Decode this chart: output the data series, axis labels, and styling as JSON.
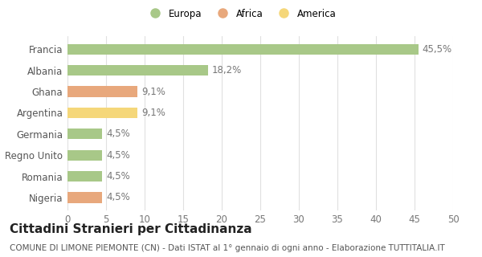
{
  "categories": [
    "Nigeria",
    "Romania",
    "Regno Unito",
    "Germania",
    "Argentina",
    "Ghana",
    "Albania",
    "Francia"
  ],
  "values": [
    4.5,
    4.5,
    4.5,
    4.5,
    9.1,
    9.1,
    18.2,
    45.5
  ],
  "labels": [
    "4,5%",
    "4,5%",
    "4,5%",
    "4,5%",
    "9,1%",
    "9,1%",
    "18,2%",
    "45,5%"
  ],
  "colors": [
    "#e8a87c",
    "#a8c888",
    "#a8c888",
    "#a8c888",
    "#f5d77a",
    "#e8a87c",
    "#a8c888",
    "#a8c888"
  ],
  "legend": [
    {
      "label": "Europa",
      "color": "#a8c888"
    },
    {
      "label": "Africa",
      "color": "#e8a87c"
    },
    {
      "label": "America",
      "color": "#f5d77a"
    }
  ],
  "xlim": [
    0,
    50
  ],
  "xticks": [
    0,
    5,
    10,
    15,
    20,
    25,
    30,
    35,
    40,
    45,
    50
  ],
  "title": "Cittadini Stranieri per Cittadinanza",
  "subtitle": "COMUNE DI LIMONE PIEMONTE (CN) - Dati ISTAT al 1° gennaio di ogni anno - Elaborazione TUTTITALIA.IT",
  "background_color": "#ffffff",
  "grid_color": "#e0e0e0",
  "bar_height": 0.5,
  "label_fontsize": 8.5,
  "tick_fontsize": 8.5,
  "title_fontsize": 11,
  "subtitle_fontsize": 7.5
}
